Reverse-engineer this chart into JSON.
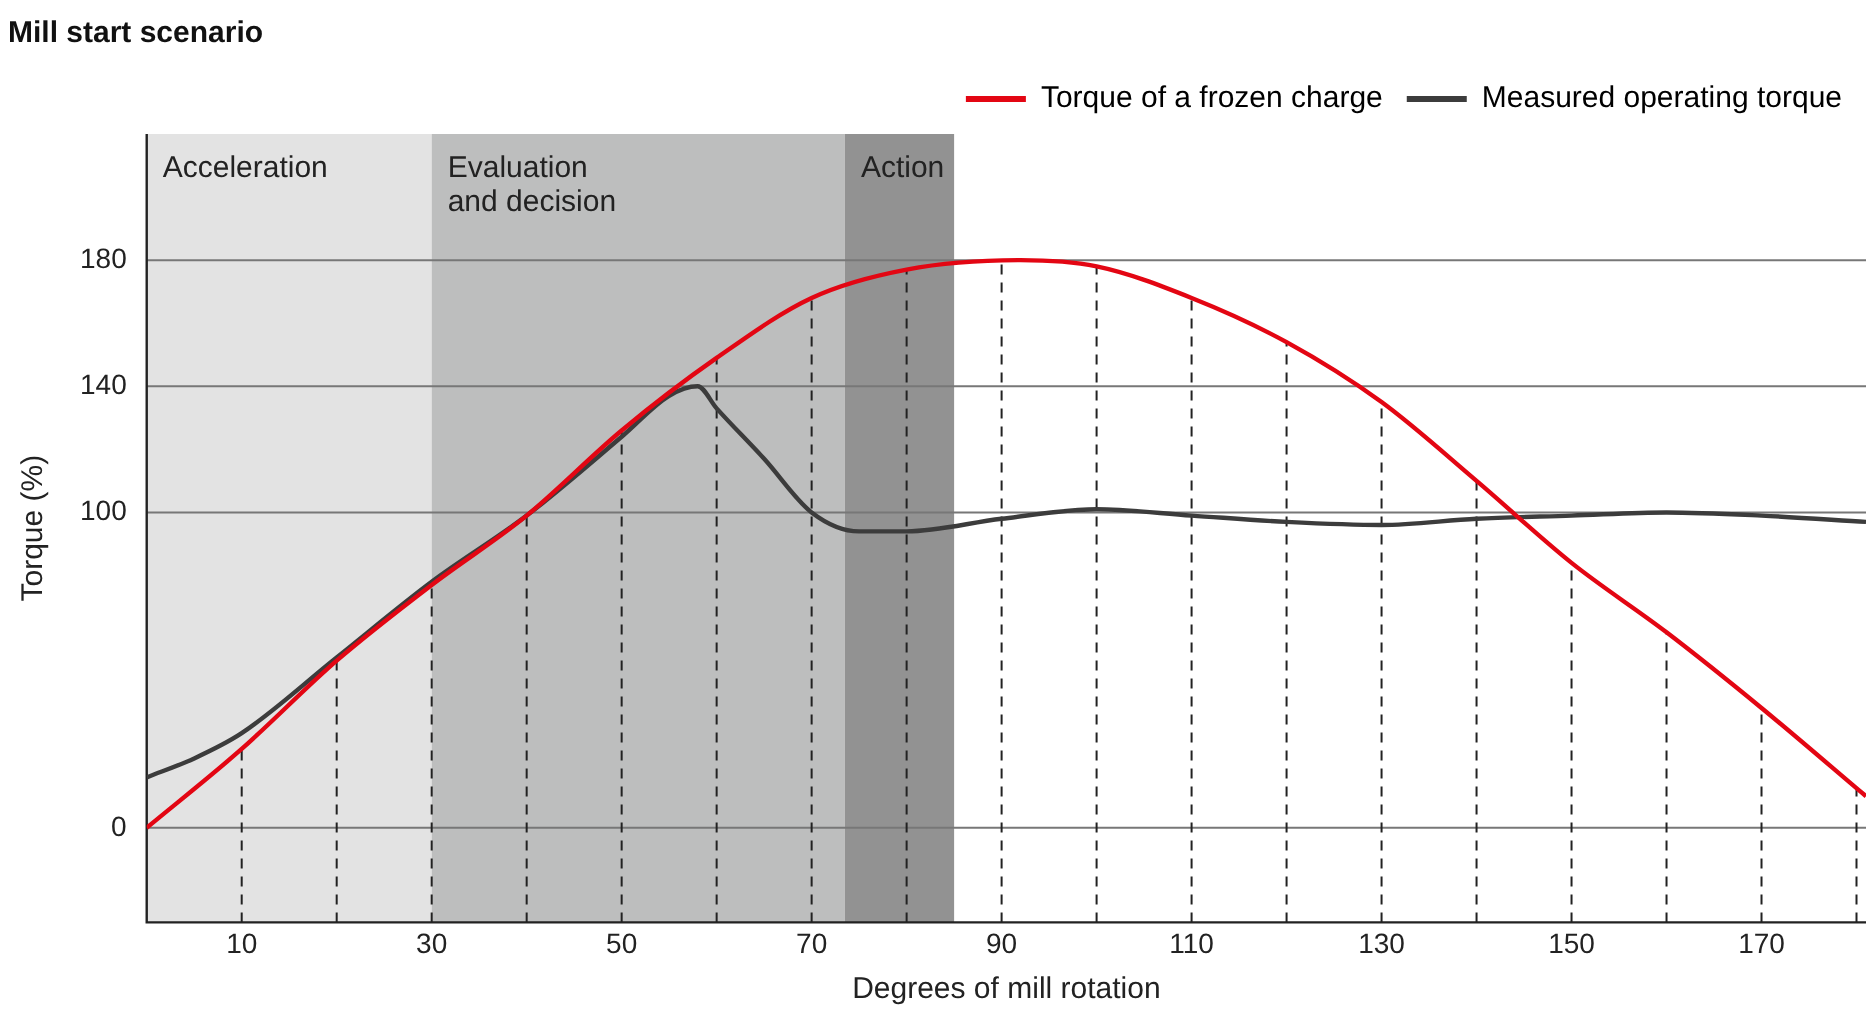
{
  "chart_data": {
    "type": "line",
    "title": "Mill start scenario",
    "xlabel": "Degrees of mill rotation",
    "ylabel": "Torque (%)",
    "xlim": [
      0,
      181
    ],
    "xticks": [
      10,
      30,
      50,
      70,
      90,
      110,
      130,
      150,
      170
    ],
    "ylim": [
      -30,
      220
    ],
    "yticks": [
      0,
      100,
      140,
      180
    ],
    "grid": "y",
    "legend": "top right",
    "marker": "none",
    "line_style": "solid",
    "series": [
      {
        "name": "Torque of a frozen charge",
        "color": "#e30613",
        "x": [
          0,
          10,
          20,
          30,
          40,
          50,
          60,
          70,
          80,
          92,
          100,
          110,
          120,
          130,
          140,
          150,
          160,
          170,
          181
        ],
        "values": [
          0,
          25,
          53,
          77,
          99,
          126,
          149,
          168,
          177,
          180,
          178,
          168,
          154,
          135,
          110,
          84,
          62,
          38,
          10
        ]
      },
      {
        "name": "Measured operating torque",
        "color": "#3c3c3c",
        "x": [
          0,
          5,
          10,
          20,
          30,
          40,
          50,
          55,
          58,
          60,
          65,
          70,
          75,
          80,
          90,
          100,
          110,
          120,
          130,
          140,
          150,
          160,
          170,
          181
        ],
        "values": [
          16,
          22,
          30,
          54,
          78,
          99,
          124,
          137,
          140,
          133,
          117,
          100,
          94,
          94,
          98,
          101,
          99,
          97,
          96,
          98,
          99,
          100,
          99,
          97
        ]
      }
    ],
    "bands": [
      {
        "axis": "x",
        "from": 0,
        "to": 30,
        "label": "Acceleration",
        "color": "#e3e3e3"
      },
      {
        "axis": "x",
        "from": 30,
        "to": 73.5,
        "label": "Evaluation\nand decision",
        "color": "#bdbebe"
      },
      {
        "axis": "x",
        "from": 73.5,
        "to": 85,
        "label": "Action",
        "color": "#929292"
      }
    ],
    "ref_lines": [
      {
        "axis": "x",
        "value": 10,
        "line_style": "dashed",
        "color": "#222222"
      },
      {
        "axis": "x",
        "value": 20,
        "line_style": "dashed",
        "color": "#222222"
      },
      {
        "axis": "x",
        "value": 30,
        "line_style": "dashed",
        "color": "#222222"
      },
      {
        "axis": "x",
        "value": 40,
        "line_style": "dashed",
        "color": "#222222"
      },
      {
        "axis": "x",
        "value": 50,
        "line_style": "dashed",
        "color": "#222222"
      },
      {
        "axis": "x",
        "value": 60,
        "line_style": "dashed",
        "color": "#222222"
      },
      {
        "axis": "x",
        "value": 70,
        "line_style": "dashed",
        "color": "#222222"
      },
      {
        "axis": "x",
        "value": 80,
        "line_style": "dashed",
        "color": "#222222"
      },
      {
        "axis": "x",
        "value": 90,
        "line_style": "dashed",
        "color": "#222222"
      },
      {
        "axis": "x",
        "value": 100,
        "line_style": "dashed",
        "color": "#222222"
      },
      {
        "axis": "x",
        "value": 110,
        "line_style": "dashed",
        "color": "#222222"
      },
      {
        "axis": "x",
        "value": 120,
        "line_style": "dashed",
        "color": "#222222"
      },
      {
        "axis": "x",
        "value": 130,
        "line_style": "dashed",
        "color": "#222222"
      },
      {
        "axis": "x",
        "value": 140,
        "line_style": "dashed",
        "color": "#222222"
      },
      {
        "axis": "x",
        "value": 150,
        "line_style": "dashed",
        "color": "#222222"
      },
      {
        "axis": "x",
        "value": 160,
        "line_style": "dashed",
        "color": "#222222"
      },
      {
        "axis": "x",
        "value": 170,
        "line_style": "dashed",
        "color": "#222222"
      },
      {
        "axis": "x",
        "value": 180,
        "line_style": "dashed",
        "color": "#222222"
      }
    ]
  }
}
